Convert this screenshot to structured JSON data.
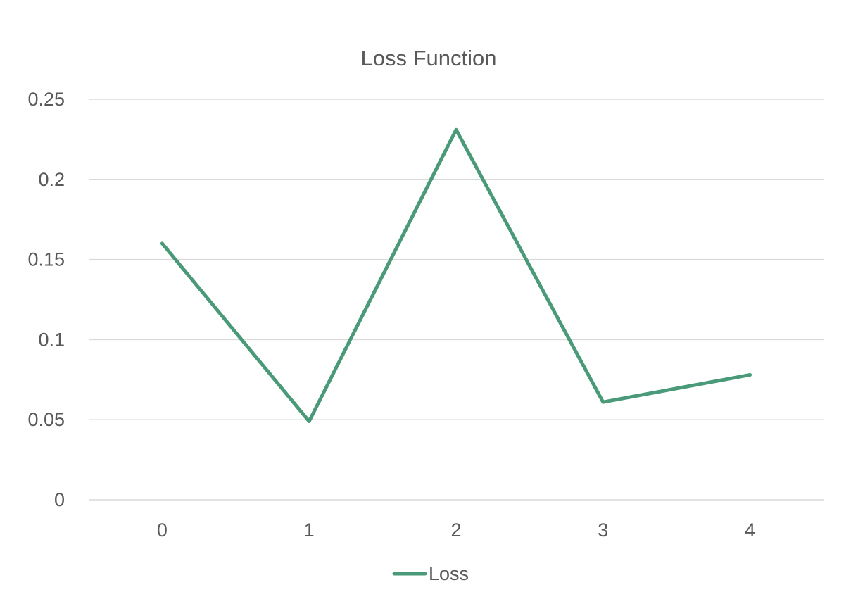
{
  "chart_data": {
    "type": "line",
    "title": "Loss Function",
    "categories": [
      "0",
      "1",
      "2",
      "3",
      "4"
    ],
    "series": [
      {
        "name": "Loss",
        "values": [
          0.16,
          0.049,
          0.231,
          0.061,
          0.078
        ],
        "color": "#4a9a7a"
      }
    ],
    "yticks": [
      "0",
      "0.05",
      "0.1",
      "0.15",
      "0.2",
      "0.25"
    ],
    "ylim": [
      0,
      0.25
    ],
    "grid": true,
    "legend": "bottom"
  }
}
